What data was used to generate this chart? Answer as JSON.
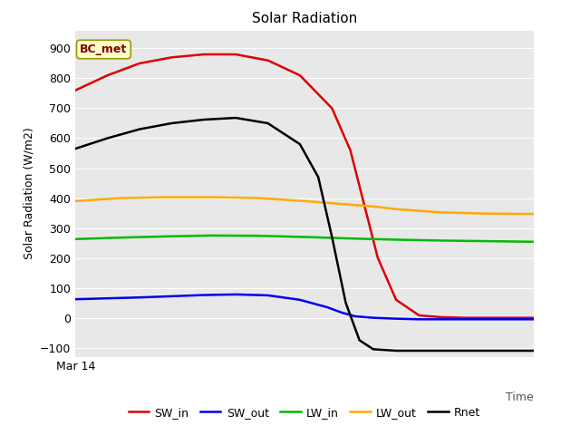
{
  "title": "Solar Radiation",
  "xlabel": "Time",
  "ylabel": "Solar Radiation (W/m2)",
  "annotation": "BC_met",
  "ylim": [
    -130,
    960
  ],
  "yticks": [
    -100,
    0,
    100,
    200,
    300,
    400,
    500,
    600,
    700,
    800,
    900
  ],
  "xstart_label": "Mar 14",
  "plot_bg": "#e8e8e8",
  "fig_bg": "#ffffff",
  "series": {
    "SW_in": {
      "color": "#dd0000",
      "data_x": [
        0,
        0.07,
        0.14,
        0.21,
        0.28,
        0.35,
        0.42,
        0.49,
        0.56,
        0.6,
        0.63,
        0.66,
        0.7,
        0.75,
        0.8,
        0.85,
        0.9,
        0.95,
        1.0
      ],
      "data_y": [
        760,
        810,
        850,
        870,
        880,
        880,
        860,
        810,
        700,
        560,
        380,
        200,
        60,
        8,
        2,
        0,
        0,
        0,
        0
      ]
    },
    "SW_out": {
      "color": "#0000ee",
      "data_x": [
        0,
        0.07,
        0.14,
        0.21,
        0.28,
        0.35,
        0.42,
        0.49,
        0.55,
        0.58,
        0.61,
        0.65,
        0.7,
        0.75,
        0.8,
        0.9,
        1.0
      ],
      "data_y": [
        62,
        65,
        68,
        72,
        76,
        78,
        75,
        60,
        35,
        18,
        5,
        0,
        -3,
        -5,
        -5,
        -5,
        -5
      ]
    },
    "LW_in": {
      "color": "#00bb00",
      "data_x": [
        0,
        0.1,
        0.2,
        0.3,
        0.4,
        0.5,
        0.6,
        0.7,
        0.8,
        0.9,
        1.0
      ],
      "data_y": [
        263,
        268,
        272,
        275,
        274,
        270,
        265,
        261,
        258,
        256,
        254
      ]
    },
    "LW_out": {
      "color": "#ffaa00",
      "data_x": [
        0,
        0.1,
        0.2,
        0.3,
        0.4,
        0.5,
        0.6,
        0.65,
        0.7,
        0.8,
        0.9,
        1.0
      ],
      "data_y": [
        390,
        400,
        403,
        403,
        400,
        390,
        378,
        372,
        363,
        352,
        348,
        347
      ]
    },
    "Rnet": {
      "color": "#000000",
      "data_x": [
        0,
        0.07,
        0.14,
        0.21,
        0.28,
        0.35,
        0.42,
        0.49,
        0.53,
        0.56,
        0.59,
        0.62,
        0.65,
        0.7,
        0.8,
        0.9,
        1.0
      ],
      "data_y": [
        565,
        600,
        630,
        650,
        662,
        668,
        650,
        580,
        470,
        270,
        50,
        -75,
        -105,
        -110,
        -110,
        -110,
        -110
      ]
    }
  },
  "legend_order": [
    "SW_in",
    "SW_out",
    "LW_in",
    "LW_out",
    "Rnet"
  ],
  "linewidth": 1.8,
  "grid_color": "#ffffff",
  "grid_linewidth": 0.8
}
